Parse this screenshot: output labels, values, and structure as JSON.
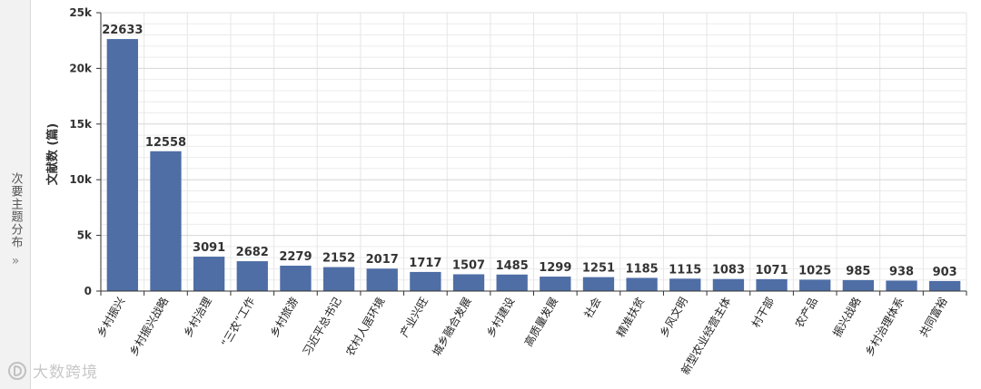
{
  "side_panel": {
    "label": "次要主题分布",
    "chevron": "»",
    "chevron_icon": "double-chevron-right-icon"
  },
  "watermark": {
    "text": "大数跨境",
    "icon": "d-logo-icon"
  },
  "chart_data": {
    "type": "bar",
    "ylabel": "文献数 (篇)",
    "xlabel": "",
    "ylim": [
      0,
      25000
    ],
    "yticks": [
      0,
      5000,
      10000,
      15000,
      20000,
      25000
    ],
    "ytick_labels": [
      "0",
      "5k",
      "10k",
      "15k",
      "20k",
      "25k"
    ],
    "grid": true,
    "bar_color": "#4e6ea5",
    "categories": [
      "乡村振兴",
      "乡村振兴战略",
      "乡村治理",
      "“三农”工作",
      "乡村旅游",
      "习近平总书记",
      "农村人居环境",
      "产业兴旺",
      "城乡融合发展",
      "乡村建设",
      "高质量发展",
      "社会",
      "精准扶贫",
      "乡风文明",
      "新型农业经营主体",
      "村干部",
      "农产品",
      "振兴战略",
      "乡村治理体系",
      "共同富裕"
    ],
    "values": [
      22633,
      12558,
      3091,
      2682,
      2279,
      2152,
      2017,
      1717,
      1507,
      1485,
      1299,
      1251,
      1185,
      1115,
      1083,
      1071,
      1025,
      985,
      938,
      903
    ]
  }
}
